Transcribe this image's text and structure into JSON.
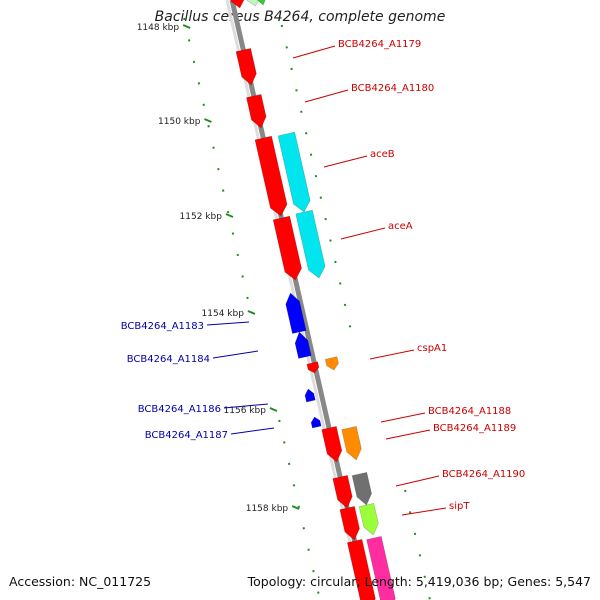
{
  "title": "Bacillus cereus B4264, complete genome",
  "accession_label": "Accession: NC_011725",
  "summary_label": "Topology: circular; Length: 5,419,036 bp; Genes: 5,547",
  "scale_ticks": [
    "1148 kbp",
    "1150 kbp",
    "1152 kbp",
    "1154 kbp",
    "1156 kbp",
    "1158 kbp"
  ],
  "gene_labels_forward": [
    "BCB4264_A1179",
    "BCB4264_A1180",
    "aceB",
    "aceA",
    "cspA1",
    "BCB4264_A1188",
    "BCB4264_A1189",
    "BCB4264_A1190",
    "sipT"
  ],
  "gene_labels_reverse": [
    "BCB4264_A1183",
    "BCB4264_A1184",
    "BCB4264_A1186",
    "BCB4264_A1187"
  ],
  "colors": {
    "forward_label": "#cc0000",
    "reverse_label": "#0000aa",
    "backbone": "#888888",
    "tick": "#228b22",
    "gene_red": "#ff0000",
    "gene_blue": "#0000ff",
    "gene_cyan": "#00e5ee",
    "gene_orange": "#ff8c00",
    "gene_gray": "#707070",
    "gene_lime": "#9aff3a",
    "gene_pink": "#ff2da0",
    "gene_lightgreen": "#bff5bf",
    "gene_green": "#33cc33"
  }
}
